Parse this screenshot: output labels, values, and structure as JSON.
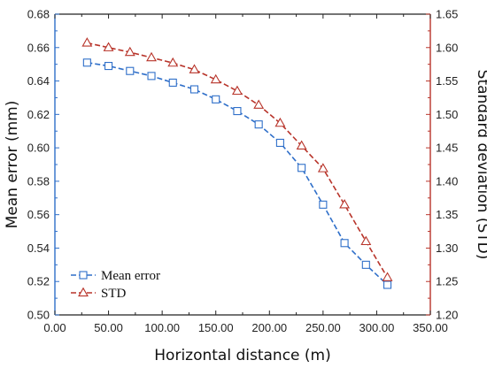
{
  "chart_data": {
    "type": "line",
    "xlabel": "Horizontal distance (m)",
    "ylabel": "Mean error (mm)",
    "y2label": "Standard deviation (STD)",
    "xlim": [
      0,
      350
    ],
    "ylim": [
      0.5,
      0.68
    ],
    "y2lim": [
      1.2,
      1.65
    ],
    "x_ticks": [
      "0.00",
      "50.00",
      "100.00",
      "150.00",
      "200.00",
      "250.00",
      "300.00",
      "350.00"
    ],
    "y_ticks": [
      "0.50",
      "0.52",
      "0.54",
      "0.56",
      "0.58",
      "0.60",
      "0.62",
      "0.64",
      "0.66",
      "0.68"
    ],
    "y2_ticks": [
      "1.20",
      "1.25",
      "1.30",
      "1.35",
      "1.40",
      "1.45",
      "1.50",
      "1.55",
      "1.60",
      "1.65"
    ],
    "grid": false,
    "legend_position": "bottom-left",
    "x": [
      30,
      50,
      70,
      90,
      110,
      130,
      150,
      170,
      190,
      210,
      230,
      250,
      270,
      290,
      310
    ],
    "series": [
      {
        "name": "Mean error",
        "axis": "left",
        "marker": "square",
        "color": "#2f6fc9",
        "values": [
          0.651,
          0.649,
          0.646,
          0.643,
          0.639,
          0.635,
          0.629,
          0.622,
          0.614,
          0.603,
          0.588,
          0.566,
          0.543,
          0.53,
          0.518
        ]
      },
      {
        "name": "STD",
        "axis": "right",
        "marker": "triangle",
        "color": "#b8342a",
        "values": [
          1.607,
          1.6,
          1.593,
          1.585,
          1.577,
          1.567,
          1.552,
          1.535,
          1.514,
          1.487,
          1.453,
          1.419,
          1.365,
          1.31,
          1.256
        ]
      }
    ]
  },
  "colors": {
    "left_axis": "#2f6fc9",
    "right_axis": "#b8342a",
    "frame": "#222222"
  }
}
